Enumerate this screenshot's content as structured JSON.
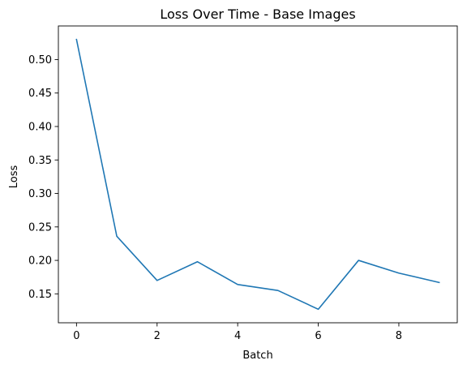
{
  "chart_data": {
    "type": "line",
    "title": "Loss Over Time - Base Images",
    "xlabel": "Batch",
    "ylabel": "Loss",
    "x": [
      0,
      1,
      2,
      3,
      4,
      5,
      6,
      7,
      8,
      9
    ],
    "series": [
      {
        "values": [
          0.53,
          0.236,
          0.17,
          0.198,
          0.164,
          0.155,
          0.127,
          0.2,
          0.181,
          0.167
        ],
        "color": "#1f77b4"
      }
    ],
    "xlim": [
      -0.45,
      9.45
    ],
    "ylim": [
      0.1068,
      0.5502
    ],
    "xticks": [
      0,
      2,
      4,
      6,
      8
    ],
    "xtick_labels": [
      "0",
      "2",
      "4",
      "6",
      "8"
    ],
    "yticks": [
      0.15,
      0.2,
      0.25,
      0.3,
      0.35,
      0.4,
      0.45,
      0.5
    ],
    "ytick_labels": [
      "0.15",
      "0.20",
      "0.25",
      "0.30",
      "0.35",
      "0.40",
      "0.45",
      "0.50"
    ],
    "grid": false,
    "legend": "none"
  }
}
